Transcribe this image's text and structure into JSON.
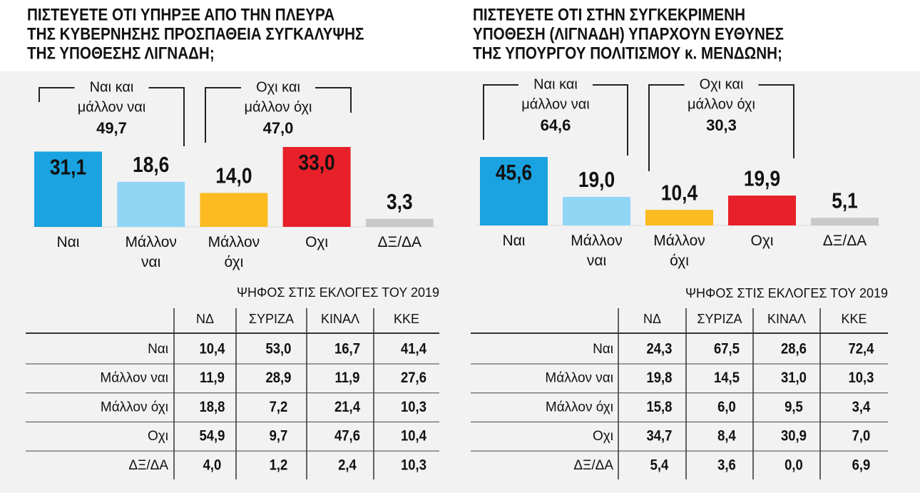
{
  "chart_data": [
    {
      "type": "bar",
      "title": [
        "ΠΙΣΤΕΥΕΤΕ ΟΤΙ ΥΠΗΡΞΕ ΑΠΟ ΤΗΝ ΠΛΕΥΡΑ",
        "ΤΗΣ ΚΥΒΕΡΝΗΣΗΣ ΠΡΟΣΠΑΘΕΙΑ ΣΥΓΚΑΛΥΨΗΣ",
        "ΤΗΣ ΥΠΟΘΕΣΗΣ ΛΙΓΝΑΔΗ;"
      ],
      "categories": [
        "Ναι",
        "Μάλλον ναι",
        "Μάλλον όχι",
        "Οχι",
        "ΔΞ/ΔΑ"
      ],
      "values": [
        31.1,
        18.6,
        14.0,
        33.0,
        3.3
      ],
      "value_labels": [
        "31,1",
        "18,6",
        "14,0",
        "33,0",
        "3,3"
      ],
      "colors": [
        "#1aa3e0",
        "#92d6f6",
        "#fbbb21",
        "#e8202a",
        "#c9c9c9"
      ],
      "annotations": [
        {
          "label": [
            "Ναι και",
            "μάλλον ναι"
          ],
          "value": 49.7,
          "value_label": "49,7"
        },
        {
          "label": [
            "Οχι και",
            "μάλλον όχι"
          ],
          "value": 47.0,
          "value_label": "47,0"
        }
      ]
    },
    {
      "type": "bar",
      "title": [
        "ΠΙΣΤΕΥΕΤΕ ΟΤΙ ΣΤΗΝ ΣΥΓΚΕΚΡΙΜΕΝΗ",
        "ΥΠΟΘΕΣΗ (ΛΙΓΝΑΔΗ) ΥΠΑΡΧΟΥΝ ΕΥΘΥΝΕΣ",
        "ΤΗΣ ΥΠΟΥΡΓΟΥ ΠΟΛΙΤΙΣΜΟΥ κ. ΜΕΝΔΩΝΗ;"
      ],
      "categories": [
        "Ναι",
        "Μάλλον ναι",
        "Μάλλον όχι",
        "Οχι",
        "ΔΞ/ΔΑ"
      ],
      "values": [
        45.6,
        19.0,
        10.4,
        19.9,
        5.1
      ],
      "value_labels": [
        "45,6",
        "19,0",
        "10,4",
        "19,9",
        "5,1"
      ],
      "colors": [
        "#1aa3e0",
        "#92d6f6",
        "#fbbb21",
        "#e8202a",
        "#c9c9c9"
      ],
      "annotations": [
        {
          "label": [
            "Ναι και",
            "μάλλον ναι"
          ],
          "value": 64.6,
          "value_label": "64,6"
        },
        {
          "label": [
            "Οχι και",
            "μάλλον όχι"
          ],
          "value": 30.3,
          "value_label": "30,3"
        }
      ]
    }
  ],
  "tables": [
    {
      "title": "ΨΗΦΟΣ ΣΤΙΣ ΕΚΛΟΓΕΣ ΤΟΥ 2019",
      "columns": [
        "ΝΔ",
        "ΣΥΡΙΖΑ",
        "ΚΙΝΑΛ",
        "ΚΚΕ"
      ],
      "rows": [
        {
          "label": "Ναι",
          "cells": [
            "10,4",
            "53,0",
            "16,7",
            "41,4"
          ]
        },
        {
          "label": "Μάλλον ναι",
          "cells": [
            "11,9",
            "28,9",
            "11,9",
            "27,6"
          ]
        },
        {
          "label": "Μάλλον όχι",
          "cells": [
            "18,8",
            "7,2",
            "21,4",
            "10,3"
          ]
        },
        {
          "label": "Οχι",
          "cells": [
            "54,9",
            "9,7",
            "47,6",
            "10,4"
          ]
        },
        {
          "label": "ΔΞ/ΔΑ",
          "cells": [
            "4,0",
            "1,2",
            "2,4",
            "10,3"
          ]
        }
      ]
    },
    {
      "title": "ΨΗΦΟΣ ΣΤΙΣ ΕΚΛΟΓΕΣ ΤΟΥ 2019",
      "columns": [
        "ΝΔ",
        "ΣΥΡΙΖΑ",
        "ΚΙΝΑΛ",
        "ΚΚΕ"
      ],
      "rows": [
        {
          "label": "Ναι",
          "cells": [
            "24,3",
            "67,5",
            "28,6",
            "72,4"
          ]
        },
        {
          "label": "Μάλλον ναι",
          "cells": [
            "19,8",
            "14,5",
            "31,0",
            "10,3"
          ]
        },
        {
          "label": "Μάλλον όχι",
          "cells": [
            "15,8",
            "6,0",
            "9,5",
            "3,4"
          ]
        },
        {
          "label": "Οχι",
          "cells": [
            "34,7",
            "8,4",
            "30,9",
            "7,0"
          ]
        },
        {
          "label": "ΔΞ/ΔΑ",
          "cells": [
            "5,4",
            "3,6",
            "0,0",
            "6,9"
          ]
        }
      ]
    }
  ]
}
